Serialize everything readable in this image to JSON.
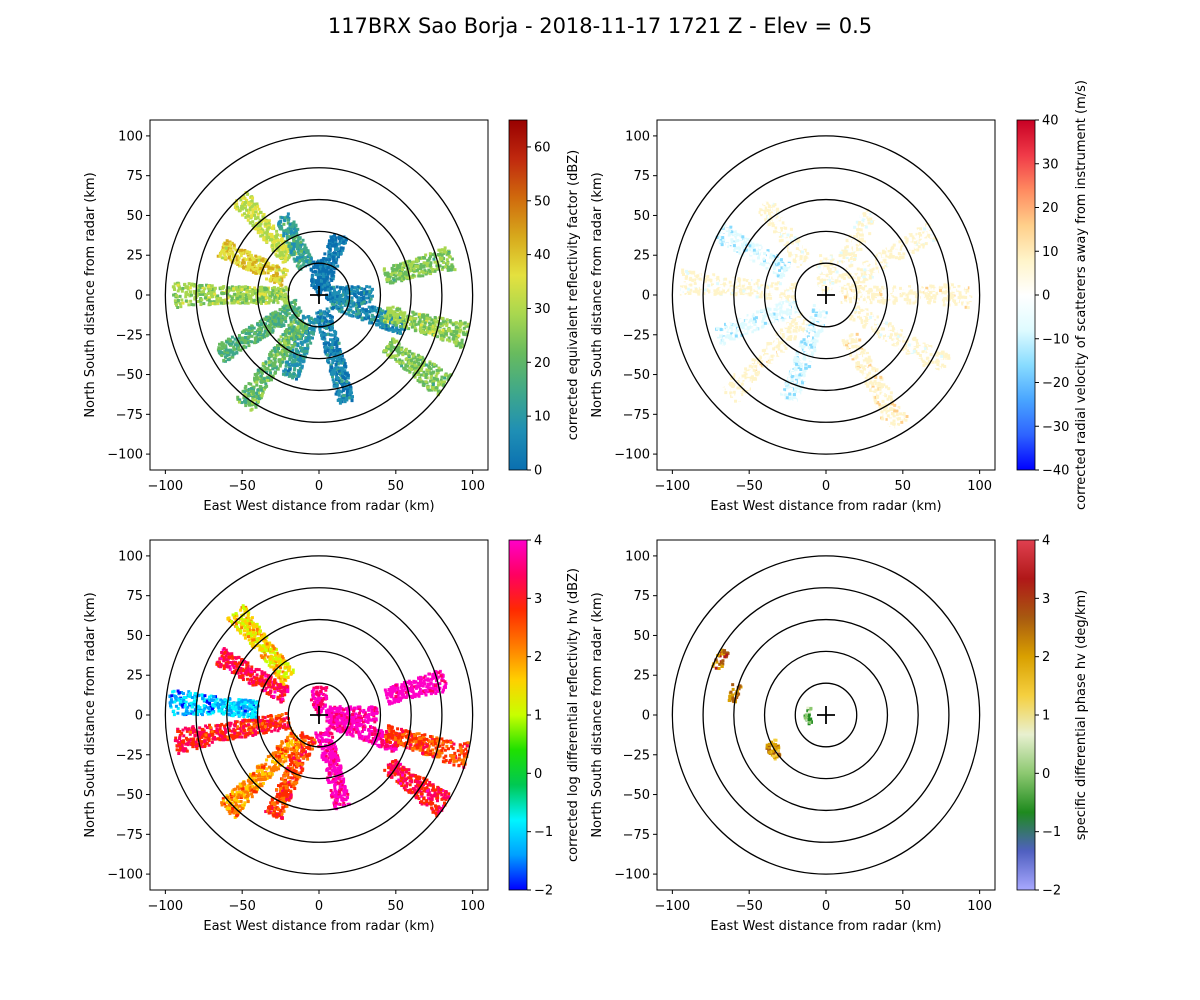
{
  "title": "117BRX Sao Borja - 2018-11-17 1721 Z -  Elev = 0.5",
  "colors": {
    "ring": "#000000",
    "axis": "#000000"
  },
  "chart_data": [
    {
      "type": "heatmap",
      "name": "reflectivity",
      "xlabel": "East West distance from radar (km)",
      "ylabel": "North South distance from radar (km)",
      "xlim": [
        -110,
        110
      ],
      "ylim": [
        -110,
        110
      ],
      "xticks": [
        -100,
        -50,
        0,
        50,
        100
      ],
      "yticks": [
        100,
        75,
        50,
        25,
        0,
        -25,
        -50,
        -75,
        -100
      ],
      "range_rings_km": [
        20,
        40,
        60,
        80,
        100
      ],
      "colorbar": {
        "label": "corrected equivalent reflectivity factor (dBZ)",
        "min": 0,
        "max": 65,
        "ticks": [
          0,
          10,
          20,
          30,
          40,
          50,
          60
        ],
        "colors": [
          "#0a6fb0",
          "#1f8fb5",
          "#3fa88a",
          "#68bb5e",
          "#a8d74f",
          "#e4e13f",
          "#d7a91c",
          "#d06a0d",
          "#c0290e",
          "#980000"
        ]
      },
      "echoes": [
        {
          "dir": 0,
          "r0": 0,
          "r1": 22,
          "level": 4
        },
        {
          "dir": 20,
          "r0": 5,
          "r1": 40,
          "level": 5
        },
        {
          "dir": 90,
          "r0": 5,
          "r1": 35,
          "level": 8
        },
        {
          "dir": 110,
          "r0": 10,
          "r1": 60,
          "level": 10
        },
        {
          "dir": 165,
          "r0": 10,
          "r1": 70,
          "level": 8
        },
        {
          "dir": 200,
          "r0": 15,
          "r1": 55,
          "level": 12
        },
        {
          "dir": 215,
          "r0": 20,
          "r1": 85,
          "level": 22
        },
        {
          "dir": 240,
          "r0": 15,
          "r1": 75,
          "level": 20
        },
        {
          "dir": 270,
          "r0": 20,
          "r1": 95,
          "level": 28
        },
        {
          "dir": 295,
          "r0": 25,
          "r1": 70,
          "level": 38
        },
        {
          "dir": 320,
          "r0": 30,
          "r1": 80,
          "level": 32
        },
        {
          "dir": 335,
          "r0": 20,
          "r1": 55,
          "level": 15
        },
        {
          "dir": 75,
          "r0": 45,
          "r1": 90,
          "level": 25
        },
        {
          "dir": 105,
          "r0": 45,
          "r1": 100,
          "level": 28
        },
        {
          "dir": 125,
          "r0": 55,
          "r1": 100,
          "level": 25
        }
      ]
    },
    {
      "type": "heatmap",
      "name": "velocity",
      "xlabel": "East West distance from radar (km)",
      "ylabel": "North South distance from radar (km)",
      "xlim": [
        -110,
        110
      ],
      "ylim": [
        -110,
        110
      ],
      "xticks": [
        -100,
        -50,
        0,
        50,
        100
      ],
      "yticks": [
        100,
        75,
        50,
        25,
        0,
        -25,
        -50,
        -75,
        -100
      ],
      "range_rings_km": [
        20,
        40,
        60,
        80,
        100
      ],
      "colorbar": {
        "label": "corrected radial velocity of scatterers away from instrument (m/s)",
        "min": -40,
        "max": 40,
        "ticks": [
          -40,
          -30,
          -20,
          -10,
          0,
          10,
          20,
          30,
          40
        ],
        "colors": [
          "#0000ff",
          "#2e63ff",
          "#49a5ff",
          "#88dcff",
          "#dffbff",
          "#ffffff",
          "#fff4c9",
          "#ffcf8a",
          "#ff8a60",
          "#f03a48",
          "#c80024"
        ]
      },
      "echoes": [
        {
          "dir": 0,
          "r0": 0,
          "r1": 25,
          "level": 2
        },
        {
          "dir": 60,
          "r0": 10,
          "r1": 80,
          "level": 3
        },
        {
          "dir": 90,
          "r0": 10,
          "r1": 95,
          "level": 4
        },
        {
          "dir": 120,
          "r0": 20,
          "r1": 90,
          "level": 3
        },
        {
          "dir": 150,
          "r0": 30,
          "r1": 95,
          "level": 5
        },
        {
          "dir": 200,
          "r0": 10,
          "r1": 70,
          "level": -6
        },
        {
          "dir": 225,
          "r0": 20,
          "r1": 90,
          "level": 4
        },
        {
          "dir": 250,
          "r0": 20,
          "r1": 75,
          "level": -5
        },
        {
          "dir": 275,
          "r0": 20,
          "r1": 95,
          "level": 3
        },
        {
          "dir": 300,
          "r0": 30,
          "r1": 80,
          "level": -6
        },
        {
          "dir": 325,
          "r0": 25,
          "r1": 70,
          "level": 3
        },
        {
          "dir": 30,
          "r0": 15,
          "r1": 60,
          "level": 2
        }
      ]
    },
    {
      "type": "heatmap",
      "name": "differential_reflectivity",
      "xlabel": "East West distance from radar (km)",
      "ylabel": "North South distance from radar (km)",
      "xlim": [
        -110,
        110
      ],
      "ylim": [
        -110,
        110
      ],
      "xticks": [
        -100,
        -50,
        0,
        50,
        100
      ],
      "yticks": [
        100,
        75,
        50,
        25,
        0,
        -25,
        -50,
        -75,
        -100
      ],
      "range_rings_km": [
        20,
        40,
        60,
        80,
        100
      ],
      "colorbar": {
        "label": "corrected log differential reflectivity hv (dBZ)",
        "min": -2,
        "max": 4,
        "ticks": [
          -2,
          -1,
          0,
          1,
          2,
          3,
          4
        ],
        "colors": [
          "#0000ff",
          "#00a0ff",
          "#00f5ff",
          "#00c853",
          "#1fe000",
          "#c8ff00",
          "#ffd000",
          "#ff7a00",
          "#ff2a00",
          "#ff0060",
          "#ff00c8"
        ]
      },
      "echoes": [
        {
          "dir": 0,
          "r0": 0,
          "r1": 18,
          "level": 3.5
        },
        {
          "dir": 90,
          "r0": 5,
          "r1": 38,
          "level": 3.8
        },
        {
          "dir": 110,
          "r0": 10,
          "r1": 55,
          "level": 3.6
        },
        {
          "dir": 165,
          "r0": 10,
          "r1": 60,
          "level": 3.7
        },
        {
          "dir": 205,
          "r0": 15,
          "r1": 70,
          "level": 2.5
        },
        {
          "dir": 225,
          "r0": 20,
          "r1": 85,
          "level": 2.0
        },
        {
          "dir": 260,
          "r0": 20,
          "r1": 95,
          "level": 2.8
        },
        {
          "dir": 275,
          "r0": 40,
          "r1": 98,
          "level": -1.0
        },
        {
          "dir": 300,
          "r0": 25,
          "r1": 75,
          "level": 3.0
        },
        {
          "dir": 320,
          "r0": 30,
          "r1": 85,
          "level": 1.5
        },
        {
          "dir": 75,
          "r0": 45,
          "r1": 85,
          "level": 3.9
        },
        {
          "dir": 105,
          "r0": 45,
          "r1": 100,
          "level": 2.5
        },
        {
          "dir": 125,
          "r0": 55,
          "r1": 100,
          "level": 3.0
        }
      ]
    },
    {
      "type": "heatmap",
      "name": "specific_differential_phase",
      "xlabel": "East West distance from radar (km)",
      "ylabel": "North South distance from radar (km)",
      "xlim": [
        -110,
        110
      ],
      "ylim": [
        -110,
        110
      ],
      "xticks": [
        -100,
        -50,
        0,
        50,
        100
      ],
      "yticks": [
        100,
        75,
        50,
        25,
        0,
        -25,
        -50,
        -75,
        -100
      ],
      "range_rings_km": [
        20,
        40,
        60,
        80,
        100
      ],
      "colorbar": {
        "label": "specific differential phase hv (deg/km)",
        "min": -2,
        "max": 4,
        "ticks": [
          -2,
          -1,
          0,
          1,
          2,
          3,
          4
        ],
        "colors": [
          "#a8a8ff",
          "#5060c0",
          "#1e8a1e",
          "#8cc870",
          "#e8f0d0",
          "#f5d040",
          "#d9a000",
          "#a85a10",
          "#b01818",
          "#e04050"
        ]
      },
      "echoes": [
        {
          "dir": 297,
          "r0": 74,
          "r1": 80,
          "level": 2.5
        },
        {
          "dir": 283,
          "r0": 58,
          "r1": 64,
          "level": 2.2
        },
        {
          "dir": 237,
          "r0": 36,
          "r1": 44,
          "level": 2.0
        },
        {
          "dir": 268,
          "r0": 10,
          "r1": 14,
          "level": 0.0
        }
      ]
    }
  ]
}
